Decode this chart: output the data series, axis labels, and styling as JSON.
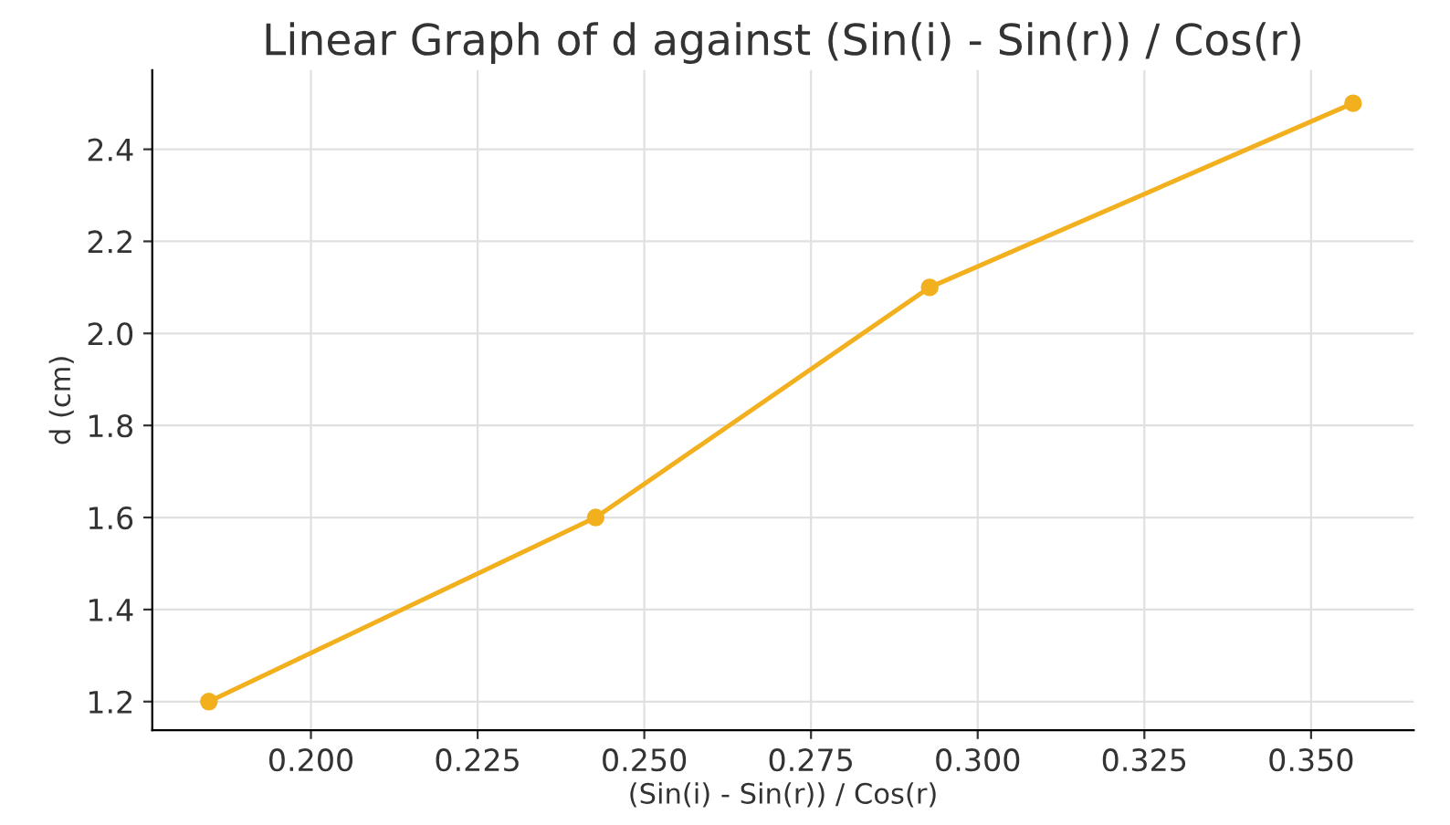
{
  "chart_data": {
    "type": "line",
    "title": "Linear Graph of d against (Sin(i) - Sin(r)) / Cos(r)",
    "xlabel": "(Sin(i) - Sin(r)) / Cos(r)",
    "ylabel": "d (cm)",
    "x": [
      0.1847,
      0.2427,
      0.2928,
      0.3563
    ],
    "series": [
      {
        "color": "#f2b01e",
        "values": [
          1.2,
          1.6,
          2.1,
          2.5
        ]
      }
    ],
    "xlim": [
      0.1762,
      0.3654
    ],
    "ylim": [
      1.138,
      2.572
    ],
    "xticks": [
      {
        "value": 0.2,
        "label": "0.200"
      },
      0.225,
      {
        "value": 0.25,
        "label": "0.250"
      },
      0.275,
      {
        "value": 0.3,
        "label": "0.300"
      },
      0.325,
      {
        "value": 0.35,
        "label": "0.350"
      }
    ],
    "yticks": [
      1.2,
      1.4,
      1.6,
      1.8,
      {
        "value": 2.0,
        "label": "2.0"
      },
      2.2,
      2.4
    ],
    "grid": true,
    "marker": "circle",
    "line_style": "solid"
  }
}
